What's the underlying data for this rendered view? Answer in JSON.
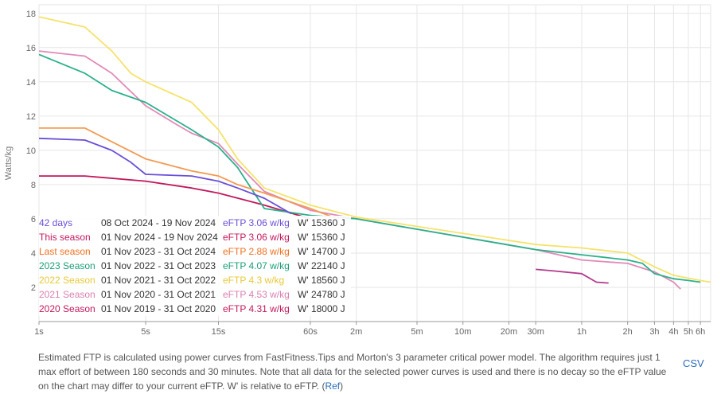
{
  "chart_data": {
    "type": "line",
    "ylabel": "Watts/kg",
    "xscale": "log",
    "xlim_seconds": [
      1,
      25200
    ],
    "ylim": [
      0,
      18.5
    ],
    "y_ticks": [
      2,
      4,
      6,
      8,
      10,
      12,
      14,
      16,
      18
    ],
    "x_ticks": [
      {
        "label": "1s",
        "seconds": 1
      },
      {
        "label": "5s",
        "seconds": 5
      },
      {
        "label": "15s",
        "seconds": 15
      },
      {
        "label": "60s",
        "seconds": 60
      },
      {
        "label": "2m",
        "seconds": 120
      },
      {
        "label": "5m",
        "seconds": 300
      },
      {
        "label": "10m",
        "seconds": 600
      },
      {
        "label": "20m",
        "seconds": 1200
      },
      {
        "label": "30m",
        "seconds": 1800
      },
      {
        "label": "1h",
        "seconds": 3600
      },
      {
        "label": "2h",
        "seconds": 7200
      },
      {
        "label": "3h",
        "seconds": 10800
      },
      {
        "label": "4h",
        "seconds": 14400
      },
      {
        "label": "5h",
        "seconds": 18000
      },
      {
        "label": "6h",
        "seconds": 21600
      }
    ],
    "grid": true,
    "series": [
      {
        "name": "2020 Season",
        "range": "01 Nov 2019 - 31 Oct 2020",
        "eftp": "eFTP 4.31 w/kg",
        "wprime": "W' 18000 J",
        "color": "#c2185b",
        "x": [
          1,
          2,
          5,
          10,
          15,
          30,
          60
        ],
        "y": [
          8.5,
          8.5,
          8.2,
          7.8,
          7.5,
          6.8,
          6.0
        ]
      },
      {
        "name": "2021 Season",
        "range": "01 Nov 2020 - 31 Oct 2021",
        "eftp": "eFTP 4.53 w/kg",
        "wprime": "W' 24780 J",
        "color": "#e08ab8",
        "x": [
          1,
          2,
          3,
          5,
          8,
          10,
          15,
          20,
          30,
          60,
          120,
          1800,
          3600,
          7200,
          10800,
          14400,
          16000
        ],
        "y": [
          15.8,
          15.5,
          14.5,
          12.6,
          11.5,
          11.0,
          10.4,
          9.2,
          7.6,
          6.5,
          6.0,
          4.2,
          3.6,
          3.4,
          2.9,
          2.3,
          1.9
        ]
      },
      {
        "name": "2022 Season",
        "range": "01 Nov 2021 - 31 Oct 2022",
        "eftp": "eFTP 4.3 w/kg",
        "wprime": "W' 18560 J",
        "color": "#f5e26a",
        "x": [
          1,
          2,
          3,
          4,
          5,
          10,
          15,
          20,
          30,
          60,
          120,
          1800,
          3600,
          7200,
          10800,
          14400,
          21600,
          25200
        ],
        "y": [
          17.8,
          17.2,
          15.8,
          14.5,
          14.0,
          12.8,
          11.2,
          9.5,
          7.8,
          6.8,
          6.1,
          4.5,
          4.3,
          4.0,
          3.2,
          2.7,
          2.4,
          2.3
        ]
      },
      {
        "name": "2023 Season",
        "range": "01 Nov 2022 - 31 Oct 2023",
        "eftp": "eFTP 4.07 w/kg",
        "wprime": "W' 22140 J",
        "color": "#2bb08a",
        "x": [
          1,
          2,
          3,
          5,
          10,
          15,
          20,
          30,
          60,
          120,
          1800,
          3600,
          7200,
          9000,
          10800,
          14400,
          18000,
          21600
        ],
        "y": [
          15.6,
          14.5,
          13.5,
          12.8,
          11.2,
          10.2,
          9.0,
          6.6,
          6.2,
          6.0,
          4.2,
          3.9,
          3.6,
          3.4,
          2.8,
          2.5,
          2.4,
          2.3
        ]
      },
      {
        "name": "Last season",
        "range": "01 Nov 2023 - 31 Oct 2024",
        "eftp": "eFTP 2.88 w/kg",
        "wprime": "W' 14700 J",
        "color": "#f39a52",
        "x": [
          1,
          2,
          3,
          5,
          10,
          15,
          20,
          30,
          60,
          90
        ],
        "y": [
          11.3,
          11.3,
          10.5,
          9.5,
          8.8,
          8.5,
          8.0,
          7.5,
          6.6,
          6.0
        ]
      },
      {
        "name": "This season",
        "range": "01 Nov 2024 - 19 Nov 2024",
        "eftp": "eFTP 3.06 w/kg",
        "wprime": "W' 15360 J",
        "color": "#b23a8e",
        "x": [
          1800,
          2400,
          3600,
          4500,
          5400
        ],
        "y": [
          3.05,
          2.95,
          2.8,
          2.3,
          2.25
        ]
      },
      {
        "name": "42 days",
        "range": "08 Oct 2024 - 19 Nov 2024",
        "eftp": "eFTP 3.06 w/kg",
        "wprime": "W' 15360 J",
        "color": "#6a4fd8",
        "x": [
          1,
          2,
          3,
          4,
          5,
          10,
          15,
          20,
          30,
          45
        ],
        "y": [
          10.7,
          10.6,
          10.0,
          9.3,
          8.6,
          8.5,
          8.2,
          7.8,
          7.2,
          6.3
        ]
      }
    ]
  },
  "legend": [
    {
      "name": "42 days",
      "range": "08 Oct 2024  -  19 Nov 2024",
      "eftp": "eFTP 3.06 w/kg",
      "wprime": "W' 15360 J",
      "color": "#6a4fd8"
    },
    {
      "name": "This season",
      "range": "01 Nov 2024  -  19 Nov 2024",
      "eftp": "eFTP 3.06 w/kg",
      "wprime": "W' 15360 J",
      "color": "#c2185b"
    },
    {
      "name": "Last season",
      "range": "01 Nov 2023  -  31 Oct 2024",
      "eftp": "eFTP 2.88 w/kg",
      "wprime": "W' 14700 J",
      "color": "#f07020"
    },
    {
      "name": "2023 Season",
      "range": "01 Nov 2022  -  31 Oct 2023",
      "eftp": "eFTP 4.07 w/kg",
      "wprime": "W' 22140 J",
      "color": "#1a9e78"
    },
    {
      "name": "2022 Season",
      "range": "01 Nov 2021  -  31 Oct 2022",
      "eftp": "eFTP 4.3 w/kg",
      "wprime": "W' 18560 J",
      "color": "#e8c838"
    },
    {
      "name": "2021 Season",
      "range": "01 Nov 2020  -  31 Oct 2021",
      "eftp": "eFTP 4.53 w/kg",
      "wprime": "W' 24780 J",
      "color": "#d97fb0"
    },
    {
      "name": "2020 Season",
      "range": "01 Nov 2019  -  31 Oct 2020",
      "eftp": "eFTP 4.31 w/kg",
      "wprime": "W' 18000 J",
      "color": "#c2185b"
    }
  ],
  "footer": {
    "text": "Estimated FTP is calculated using power curves from FastFitness.Tips and Morton's 3 parameter critical power model. The algorithm requires just 1 max effort of between 180 seconds and 30 minutes. Note that all data for the selected power curves is used and there is no decay so the eFTP value on the chart may differ to your current eFTP. W' is relative to eFTP. (",
    "ref_link": "Ref",
    "close": ")"
  },
  "csv_button": "CSV"
}
